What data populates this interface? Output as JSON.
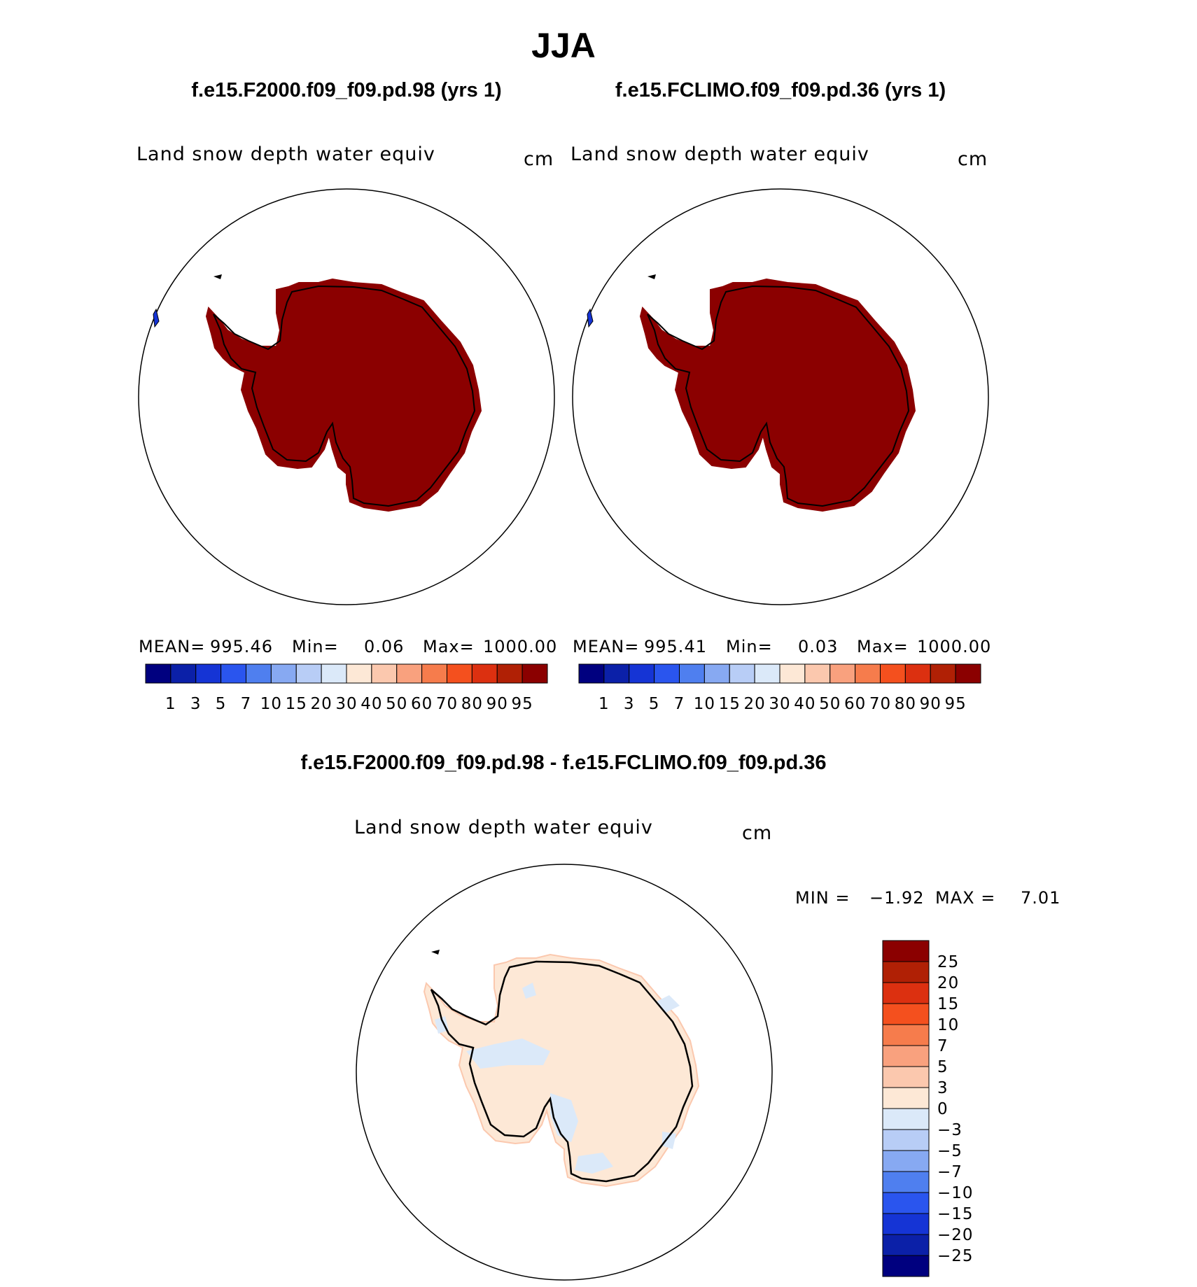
{
  "figure": {
    "title": "JJA",
    "colors": {
      "land_outline": "#000000",
      "background": "#ffffff"
    }
  },
  "panels": [
    {
      "case_title": "f.e15.F2000.f09_f09.pd.98 (yrs 1)",
      "variable": "Land snow depth water equiv",
      "units": "cm",
      "stats": {
        "mean_label": "MEAN=",
        "mean": "995.46",
        "min_label": "Min=",
        "min": "0.06",
        "max_label": "Max=",
        "max": "1000.00"
      },
      "fill_color": "#8b0000"
    },
    {
      "case_title": "f.e15.FCLIMO.f09_f09.pd.36 (yrs 1)",
      "variable": "Land snow depth water equiv",
      "units": "cm",
      "stats": {
        "mean_label": "MEAN=",
        "mean": "995.41",
        "min_label": "Min=",
        "min": "0.03",
        "max_label": "Max=",
        "max": "1000.00"
      },
      "fill_color": "#8b0000"
    }
  ],
  "abs_colorbar": {
    "labels": [
      "1",
      "3",
      "5",
      "7",
      "10",
      "15",
      "20",
      "30",
      "40",
      "50",
      "60",
      "70",
      "80",
      "90",
      "95"
    ],
    "colors": [
      "#00007f",
      "#0b20a8",
      "#1534d5",
      "#2a55ee",
      "#4f7fef",
      "#87a9f2",
      "#b8cdf6",
      "#dbe9f9",
      "#fde8d6",
      "#fbc8ae",
      "#f9a17e",
      "#f67c4c",
      "#f4501e",
      "#dc3010",
      "#b02005",
      "#8b0000"
    ]
  },
  "diff_panel": {
    "title": "f.e15.F2000.f09_f09.pd.98 - f.e15.FCLIMO.f09_f09.pd.36",
    "variable": "Land snow depth water equiv",
    "units": "cm",
    "range": {
      "min_label": "MIN =",
      "min": "−1.92",
      "max_label": "MAX =",
      "max": "7.01"
    },
    "fill_color": "#fde8d6",
    "negative_patch_color": "#dbe9f9"
  },
  "diff_colorbar": {
    "labels": [
      "25",
      "20",
      "15",
      "10",
      "7",
      "5",
      "3",
      "0",
      "−3",
      "−5",
      "−7",
      "−10",
      "−15",
      "−20",
      "−25"
    ],
    "colors": [
      "#8b0000",
      "#b02005",
      "#dc3010",
      "#f4501e",
      "#f67c4c",
      "#f9a17e",
      "#fbc8ae",
      "#fde8d6",
      "#dbe9f9",
      "#b8cdf6",
      "#87a9f2",
      "#4f7fef",
      "#2a55ee",
      "#1534d5",
      "#0b20a8",
      "#00007f"
    ]
  }
}
